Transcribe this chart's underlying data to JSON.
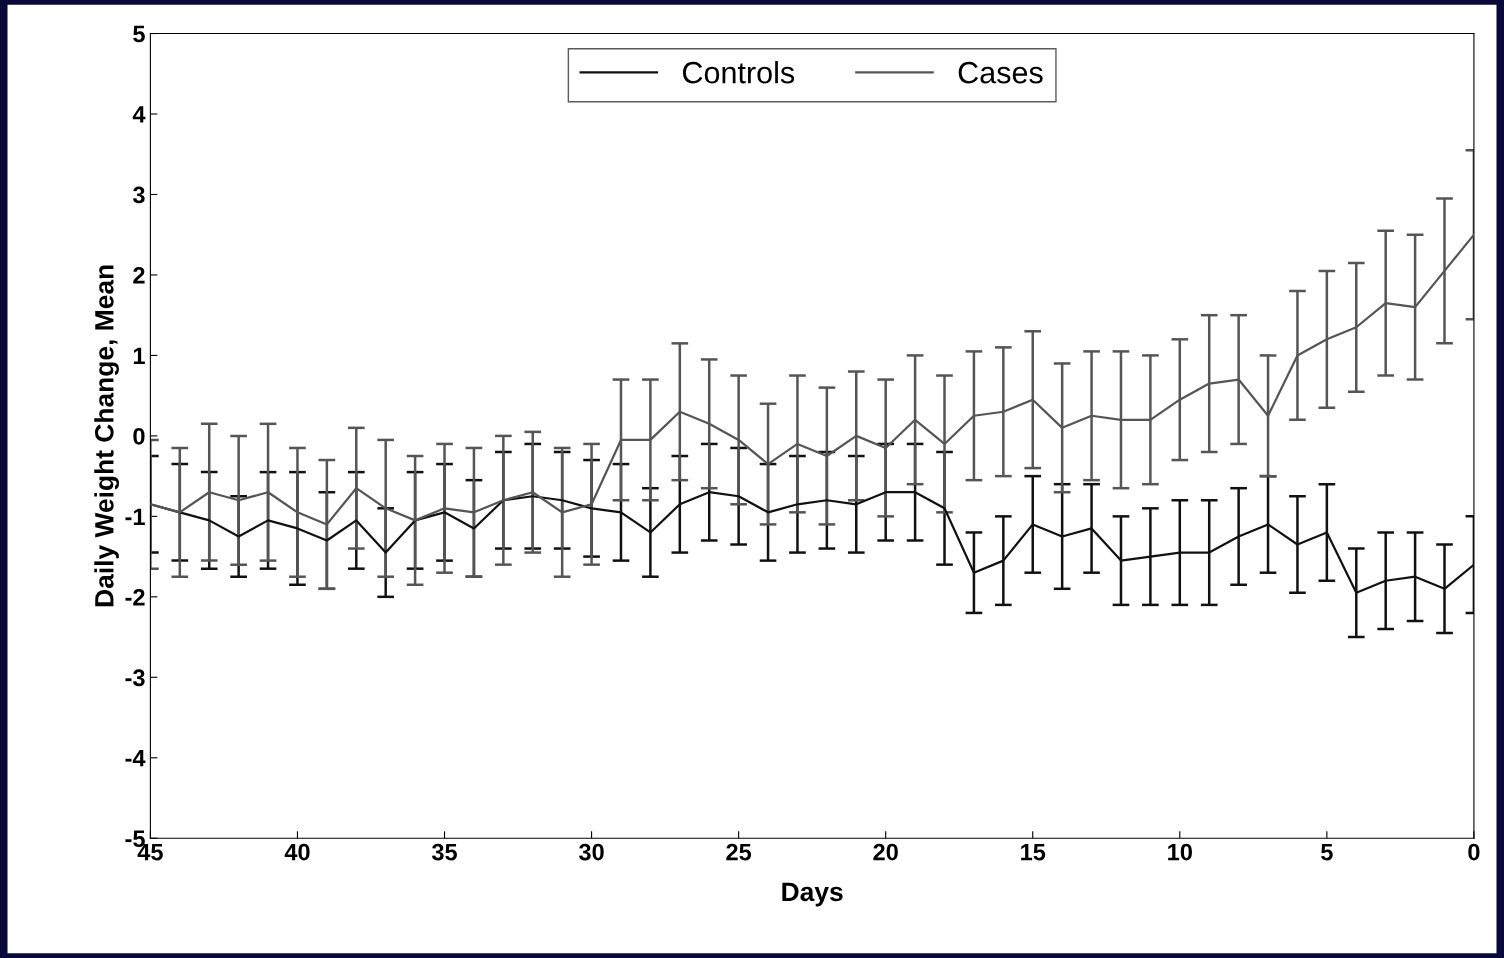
{
  "chart_data": {
    "type": "line",
    "xlabel": "Days",
    "ylabel": "Daily Weight Change, Mean",
    "x": [
      45,
      44,
      43,
      42,
      41,
      40,
      39,
      38,
      37,
      36,
      35,
      34,
      33,
      32,
      31,
      30,
      29,
      28,
      27,
      26,
      25,
      24,
      23,
      22,
      21,
      20,
      19,
      18,
      17,
      16,
      15,
      14,
      13,
      12,
      11,
      10,
      9,
      8,
      7,
      6,
      5,
      4,
      3,
      2,
      1,
      0
    ],
    "series": [
      {
        "name": "Controls",
        "color": "#111111",
        "values": [
          -0.85,
          -0.95,
          -1.05,
          -1.25,
          -1.05,
          -1.15,
          -1.3,
          -1.05,
          -1.45,
          -1.05,
          -0.95,
          -1.15,
          -0.8,
          -0.75,
          -0.8,
          -0.9,
          -0.95,
          -1.2,
          -0.85,
          -0.7,
          -0.75,
          -0.95,
          -0.85,
          -0.8,
          -0.85,
          -0.7,
          -0.7,
          -0.9,
          -1.7,
          -1.55,
          -1.1,
          -1.25,
          -1.15,
          -1.55,
          -1.5,
          -1.45,
          -1.45,
          -1.25,
          -1.1,
          -1.35,
          -1.2,
          -1.95,
          -1.8,
          -1.75,
          -1.9,
          -1.6
        ],
        "errors": [
          0.6,
          0.6,
          0.6,
          0.5,
          0.6,
          0.7,
          0.6,
          0.6,
          0.55,
          0.6,
          0.6,
          0.6,
          0.6,
          0.65,
          0.6,
          0.6,
          0.6,
          0.55,
          0.6,
          0.6,
          0.6,
          0.6,
          0.6,
          0.6,
          0.6,
          0.6,
          0.6,
          0.7,
          0.5,
          0.55,
          0.6,
          0.65,
          0.55,
          0.55,
          0.6,
          0.65,
          0.65,
          0.6,
          0.6,
          0.6,
          0.6,
          0.55,
          0.6,
          0.55,
          0.55,
          0.6
        ]
      },
      {
        "name": "Cases",
        "color": "#555555",
        "values": [
          -0.85,
          -0.95,
          -0.7,
          -0.8,
          -0.7,
          -0.95,
          -1.1,
          -0.65,
          -0.9,
          -1.05,
          -0.9,
          -0.95,
          -0.8,
          -0.7,
          -0.95,
          -0.85,
          -0.05,
          -0.05,
          0.3,
          0.15,
          -0.05,
          -0.35,
          -0.1,
          -0.25,
          0.0,
          -0.15,
          0.2,
          -0.1,
          0.25,
          0.3,
          0.45,
          0.1,
          0.25,
          0.2,
          0.2,
          0.45,
          0.65,
          0.7,
          0.25,
          1.0,
          1.2,
          1.35,
          1.65,
          1.6,
          2.05,
          2.5
        ],
        "errors": [
          0.8,
          0.8,
          0.85,
          0.8,
          0.85,
          0.8,
          0.8,
          0.75,
          0.85,
          0.8,
          0.8,
          0.8,
          0.8,
          0.75,
          0.8,
          0.75,
          0.75,
          0.75,
          0.85,
          0.8,
          0.8,
          0.75,
          0.85,
          0.85,
          0.8,
          0.85,
          0.8,
          0.85,
          0.8,
          0.8,
          0.85,
          0.8,
          0.8,
          0.85,
          0.8,
          0.75,
          0.85,
          0.8,
          0.75,
          0.8,
          0.85,
          0.8,
          0.9,
          0.9,
          0.9,
          1.05
        ]
      }
    ],
    "xlim": [
      45,
      0
    ],
    "xticks": [
      45,
      40,
      35,
      30,
      25,
      20,
      15,
      10,
      5,
      0
    ],
    "ylim": [
      -5,
      5
    ],
    "yticks": [
      -5,
      -4,
      -3,
      -2,
      -1,
      0,
      1,
      2,
      3,
      4,
      5
    ],
    "legend": "top",
    "marker": "none",
    "grid": false
  }
}
